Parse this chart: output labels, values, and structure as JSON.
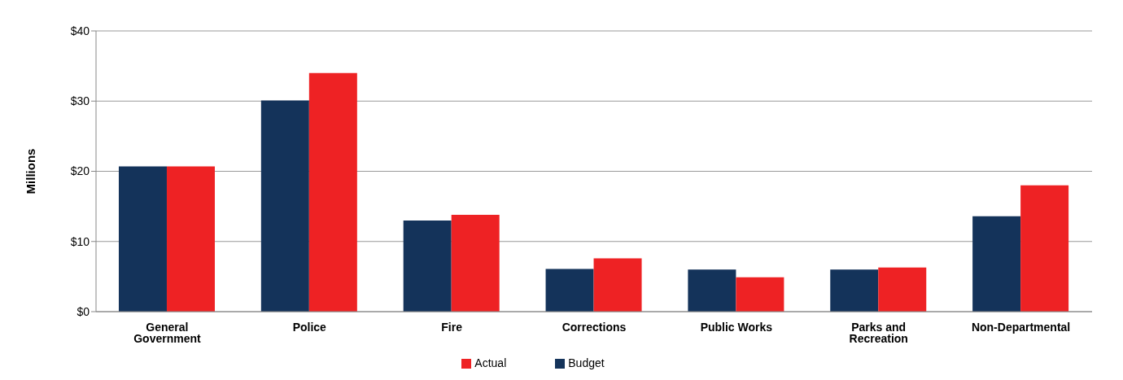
{
  "chart_data": {
    "type": "bar",
    "ylabel": "Millions",
    "categories": [
      "General Government",
      "Police",
      "Fire",
      "Corrections",
      "Public Works",
      "Parks and Recreation",
      "Non-Departmental"
    ],
    "series": [
      {
        "name": "Budget",
        "color": "#14335a",
        "values": [
          20.7,
          30.1,
          13,
          6.1,
          6,
          6,
          13.6
        ]
      },
      {
        "name": "Actual",
        "color": "#ee2224",
        "values": [
          20.7,
          34,
          13.8,
          7.6,
          4.9,
          6.3,
          18
        ]
      }
    ],
    "ylim": [
      0,
      40
    ],
    "yticks": [
      {
        "value": 0,
        "label": "$0"
      },
      {
        "value": 10,
        "label": "$10"
      },
      {
        "value": 20,
        "label": "$20"
      },
      {
        "value": 30,
        "label": "$30"
      },
      {
        "value": 40,
        "label": "$40"
      }
    ],
    "grid": "y",
    "legend": "bottom"
  }
}
